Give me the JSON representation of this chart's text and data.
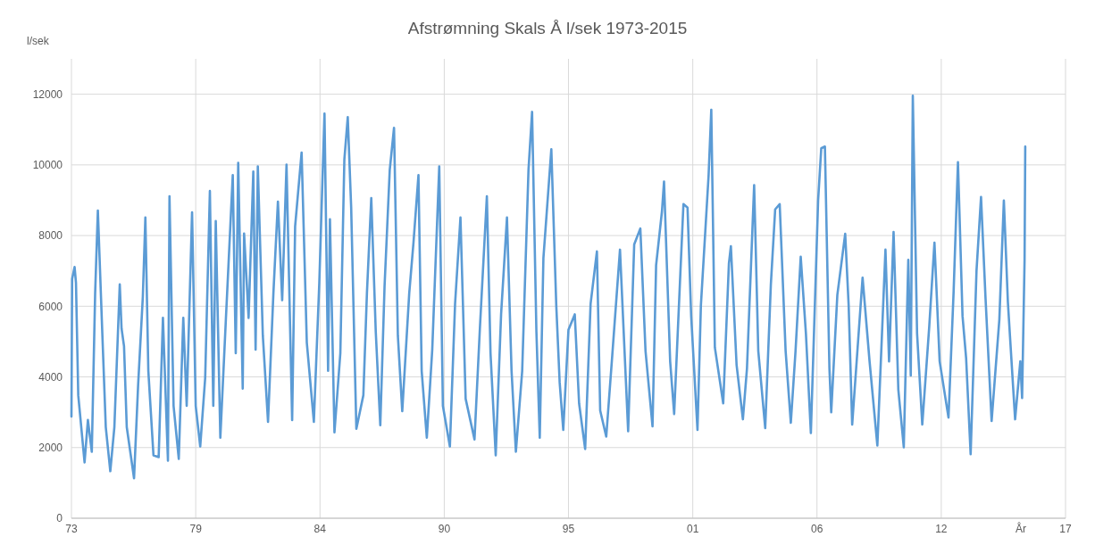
{
  "chart_data": {
    "type": "line",
    "title": "Afstrømning Skals Å l/sek 1973-2015",
    "ylabel": "l/sek",
    "xlabel": "År",
    "xlim": [
      "1973-08-07",
      "2017-08-07"
    ],
    "xticks": [
      {
        "value": "1973-08-07",
        "label": "73"
      },
      {
        "value": "1979-02-06",
        "label": "79"
      },
      {
        "value": "1984-08-07",
        "label": "84"
      },
      {
        "value": "1990-02-06",
        "label": "90"
      },
      {
        "value": "1995-08-07",
        "label": "95"
      },
      {
        "value": "2001-02-06",
        "label": "01"
      },
      {
        "value": "2006-08-07",
        "label": "06"
      },
      {
        "value": "2012-02-06",
        "label": "12"
      },
      {
        "value": "2017-08-07",
        "label": "17"
      }
    ],
    "ylim": [
      0,
      13000
    ],
    "yticks": [
      0,
      2000,
      4000,
      6000,
      8000,
      10000,
      12000
    ],
    "grid": true,
    "marker": "none",
    "line_style": "solid",
    "series": [
      {
        "color": "#5b9bd5",
        "x": [
          "1973-08-07",
          "1973-08-18",
          "1973-09-27",
          "1973-10-19",
          "1973-11-25",
          "1974-03-07",
          "1974-04-30",
          "1974-07-02",
          "1974-08-25",
          "1974-10-08",
          "1974-12-16",
          "1975-02-13",
          "1975-04-27",
          "1975-07-02",
          "1975-09-27",
          "1975-10-26",
          "1975-12-05",
          "1976-01-18",
          "1976-05-15",
          "1976-07-20",
          "1976-10-04",
          "1976-11-14",
          "1977-01-01",
          "1977-03-25",
          "1977-06-17",
          "1977-08-25",
          "1977-11-14",
          "1977-12-09",
          "1978-02-13",
          "1978-05-08",
          "1978-07-20",
          "1978-09-13",
          "1978-12-09",
          "1979-02-06",
          "1979-04-20",
          "1979-07-09",
          "1979-09-23",
          "1979-11-17",
          "1979-12-27",
          "1980-03-10",
          "1980-06-06",
          "1980-09-27",
          "1980-11-14",
          "1980-12-24",
          "1981-03-07",
          "1981-03-29",
          "1981-06-10",
          "1981-08-25",
          "1981-10-01",
          "1981-11-06",
          "1982-01-26",
          "1982-04-20",
          "1982-07-16",
          "1982-09-27",
          "1982-12-05",
          "1983-02-13",
          "1983-05-15",
          "1983-07-02",
          "1983-10-15",
          "1984-01-07",
          "1984-04-30",
          "1984-07-27",
          "1984-10-19",
          "1984-12-16",
          "1985-01-15",
          "1985-03-29",
          "1985-07-02",
          "1985-09-05",
          "1985-10-30",
          "1985-12-24",
          "1986-03-18",
          "1986-07-09",
          "1986-09-05",
          "1986-11-14",
          "1987-01-26",
          "1987-04-09",
          "1987-06-17",
          "1987-09-09",
          "1987-11-17",
          "1988-01-18",
          "1988-03-29",
          "1988-07-20",
          "1988-09-27",
          "1988-12-16",
          "1989-02-06",
          "1989-04-30",
          "1989-07-27",
          "1989-11-17",
          "1990-01-15",
          "1990-05-08",
          "1990-07-31",
          "1990-10-26",
          "1991-01-18",
          "1991-06-10",
          "1991-09-05",
          "1991-12-27",
          "1992-02-24",
          "1992-05-18",
          "1992-08-13",
          "1992-11-16",
          "1993-01-29",
          "1993-04-09",
          "1993-07-20",
          "1993-10-30",
          "1993-12-27",
          "1994-03-07",
          "1994-04-30",
          "1994-06-28",
          "1994-11-03",
          "1995-01-22",
          "1995-03-18",
          "1995-05-15",
          "1995-08-07",
          "1995-11-17",
          "1996-01-26",
          "1996-05-03",
          "1996-07-30",
          "1996-11-09",
          "1997-01-01",
          "1997-04-09",
          "1997-07-16",
          "1997-11-17",
          "1998-03-29",
          "1998-07-05",
          "1998-10-12",
          "1999-01-04",
          "1999-04-27",
          "1999-06-24",
          "1999-09-27",
          "1999-10-30",
          "2000-02-06",
          "2000-04-11",
          "2000-07-22",
          "2000-09-08",
          "2000-11-13",
          "2001-01-11",
          "2001-04-23",
          "2001-06-17",
          "2001-10-19",
          "2001-12-02",
          "2002-01-29",
          "2002-06-13",
          "2002-09-13",
          "2002-10-15",
          "2003-01-15",
          "2003-04-27",
          "2003-07-02",
          "2003-10-26",
          "2004-01-01",
          "2004-04-22",
          "2004-07-22",
          "2004-09-30",
          "2004-12-12",
          "2005-03-18",
          "2005-06-10",
          "2005-08-25",
          "2005-11-17",
          "2006-02-09",
          "2006-04-30",
          "2006-08-25",
          "2006-10-15",
          "2006-12-13",
          "2007-02-24",
          "2007-03-25",
          "2007-07-02",
          "2007-11-06",
          "2008-01-01",
          "2008-02-27",
          "2008-08-13",
          "2008-12-04",
          "2009-04-09",
          "2009-08-18",
          "2009-10-15",
          "2009-12-27",
          "2010-03-14",
          "2010-06-10",
          "2010-08-22",
          "2010-10-01",
          "2010-11-03",
          "2011-01-11",
          "2011-04-05",
          "2011-07-27",
          "2011-10-19",
          "2012-01-11",
          "2012-06-02",
          "2012-08-24",
          "2012-11-02",
          "2013-01-15",
          "2013-03-14",
          "2013-05-26",
          "2013-08-29",
          "2013-11-10",
          "2014-01-22",
          "2014-04-30",
          "2014-09-02",
          "2014-11-14",
          "2015-01-18",
          "2015-05-15",
          "2015-08-07",
          "2015-09-05",
          "2015-10-15",
          "2015-10-26"
        ],
        "values": [
          2880,
          6770,
          7110,
          6670,
          3480,
          1580,
          2780,
          1880,
          6370,
          8710,
          5370,
          2580,
          1330,
          2580,
          6620,
          5370,
          4870,
          2580,
          1130,
          3770,
          6270,
          8510,
          4170,
          1780,
          1730,
          5670,
          1630,
          9110,
          3180,
          1680,
          5670,
          3180,
          8660,
          3180,
          2030,
          3970,
          9260,
          3180,
          8410,
          2280,
          5570,
          9710,
          4670,
          10060,
          3670,
          8060,
          5670,
          9810,
          4770,
          9960,
          5170,
          2730,
          6370,
          8960,
          6170,
          10010,
          2780,
          8260,
          10350,
          4970,
          2730,
          6670,
          11450,
          4170,
          8460,
          2430,
          4670,
          10150,
          11350,
          8810,
          2530,
          3480,
          6370,
          9060,
          5270,
          2630,
          6570,
          9860,
          11050,
          5170,
          3030,
          6370,
          7810,
          9710,
          4170,
          2280,
          4770,
          9960,
          3180,
          2030,
          6070,
          8510,
          3380,
          2230,
          5370,
          9110,
          4670,
          1780,
          5770,
          8510,
          4170,
          1880,
          4170,
          9860,
          11500,
          5270,
          2280,
          7360,
          10440,
          6020,
          3840,
          2500,
          5330,
          5770,
          3250,
          1960,
          6070,
          7550,
          3050,
          2310,
          4630,
          7600,
          2460,
          7750,
          8200,
          4730,
          2600,
          7160,
          8690,
          9530,
          4440,
          2950,
          7010,
          8890,
          8790,
          5720,
          2500,
          6020,
          9680,
          11560,
          4830,
          3250,
          7210,
          7700,
          4340,
          2800,
          4240,
          9430,
          4730,
          2550,
          6610,
          8740,
          8890,
          4730,
          2700,
          4730,
          7400,
          5230,
          2410,
          8990,
          10470,
          10520,
          4240,
          3000,
          6320,
          8050,
          6020,
          2650,
          6810,
          4440,
          2060,
          7600,
          4440,
          8100,
          3640,
          2010,
          7310,
          4040,
          11960,
          5230,
          2650,
          5430,
          7800,
          4440,
          2850,
          6420,
          10080,
          5720,
          4530,
          1810,
          7010,
          9090,
          6220,
          2750,
          5620,
          8990,
          6120,
          2800,
          4440,
          3400,
          7310,
          10520
        ]
      }
    ]
  }
}
